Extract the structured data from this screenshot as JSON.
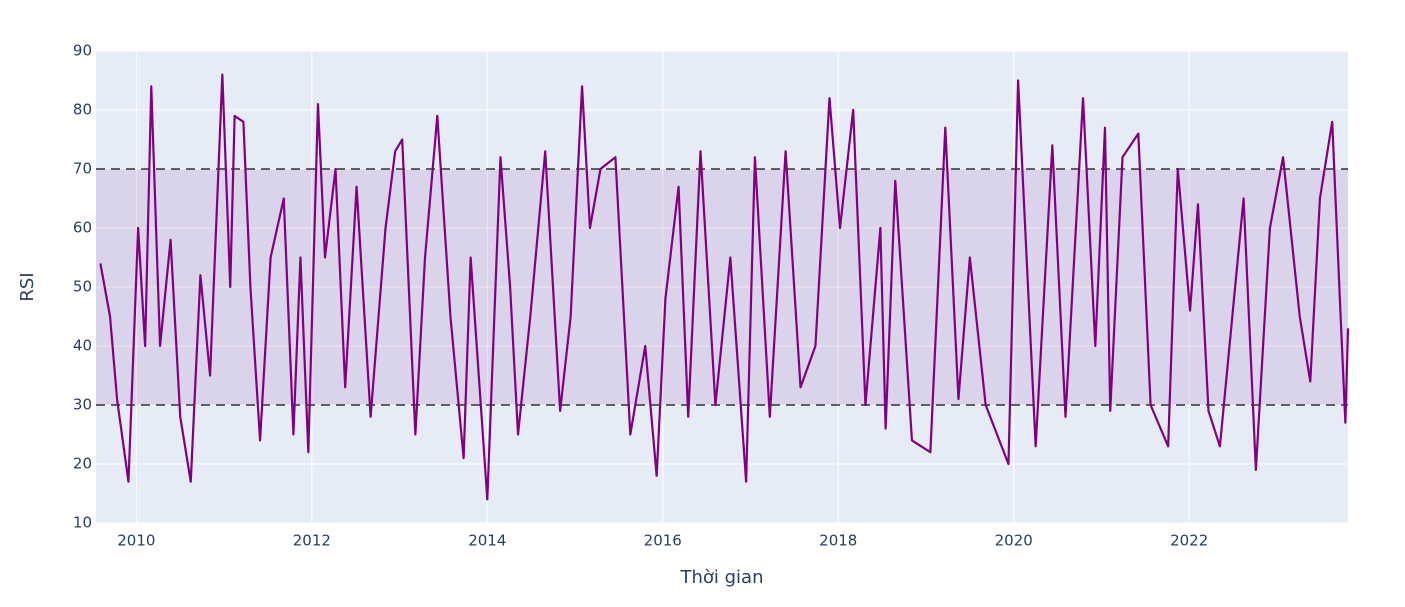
{
  "chart_data": {
    "type": "line",
    "xlabel": "Thời gian",
    "ylabel": "RSI",
    "x": [
      2009.59,
      2009.7,
      2009.78,
      2009.91,
      2010.02,
      2010.1,
      2010.17,
      2010.27,
      2010.39,
      2010.5,
      2010.62,
      2010.73,
      2010.84,
      2010.98,
      2011.07,
      2011.12,
      2011.22,
      2011.3,
      2011.41,
      2011.53,
      2011.68,
      2011.79,
      2011.87,
      2011.96,
      2012.07,
      2012.15,
      2012.27,
      2012.38,
      2012.51,
      2012.67,
      2012.84,
      2012.95,
      2013.03,
      2013.18,
      2013.29,
      2013.43,
      2013.58,
      2013.73,
      2013.81,
      2014.0,
      2014.15,
      2014.26,
      2014.35,
      2014.49,
      2014.66,
      2014.83,
      2014.95,
      2015.08,
      2015.17,
      2015.29,
      2015.46,
      2015.63,
      2015.8,
      2015.93,
      2016.03,
      2016.18,
      2016.29,
      2016.43,
      2016.6,
      2016.77,
      2016.95,
      2017.05,
      2017.22,
      2017.4,
      2017.57,
      2017.74,
      2017.9,
      2018.02,
      2018.17,
      2018.31,
      2018.48,
      2018.54,
      2018.65,
      2018.84,
      2019.05,
      2019.22,
      2019.37,
      2019.5,
      2019.68,
      2019.94,
      2020.05,
      2020.25,
      2020.44,
      2020.59,
      2020.79,
      2020.93,
      2021.04,
      2021.1,
      2021.24,
      2021.42,
      2021.56,
      2021.76,
      2021.87,
      2022.01,
      2022.1,
      2022.22,
      2022.35,
      2022.62,
      2022.76,
      2022.92,
      2023.07,
      2023.26,
      2023.38,
      2023.49,
      2023.63,
      2023.72,
      2023.78,
      2023.81
    ],
    "series": [
      {
        "name": "RSI",
        "color": "#800080",
        "values": [
          54,
          45,
          31,
          17,
          60,
          40,
          84,
          40,
          58,
          28,
          17,
          52,
          35,
          86,
          50,
          79,
          78,
          50,
          24,
          55,
          65,
          25,
          55,
          22,
          81,
          55,
          70,
          33,
          67,
          28,
          60,
          73,
          75,
          25,
          55,
          79,
          45,
          21,
          55,
          14,
          72,
          50,
          25,
          45,
          73,
          29,
          45,
          84,
          60,
          70,
          72,
          25,
          40,
          18,
          48,
          67,
          28,
          73,
          30,
          55,
          17,
          72,
          28,
          73,
          33,
          40,
          82,
          60,
          80,
          30,
          60,
          26,
          68,
          24,
          22,
          77,
          31,
          55,
          30,
          20,
          85,
          23,
          74,
          28,
          82,
          40,
          77,
          29,
          72,
          76,
          30,
          23,
          70,
          46,
          64,
          29,
          23,
          65,
          19,
          60,
          72,
          45,
          34,
          65,
          78,
          47,
          27,
          43
        ]
      }
    ],
    "hlines": [
      70,
      30
    ],
    "band_color": "#800080",
    "xlim": [
      2009.54,
      2023.81
    ],
    "xticks": [
      2010,
      2012,
      2014,
      2016,
      2018,
      2020,
      2022
    ],
    "ylim": [
      10,
      90
    ],
    "yticks": [
      10,
      20,
      30,
      40,
      50,
      60,
      70,
      80,
      90
    ],
    "grid": true
  }
}
